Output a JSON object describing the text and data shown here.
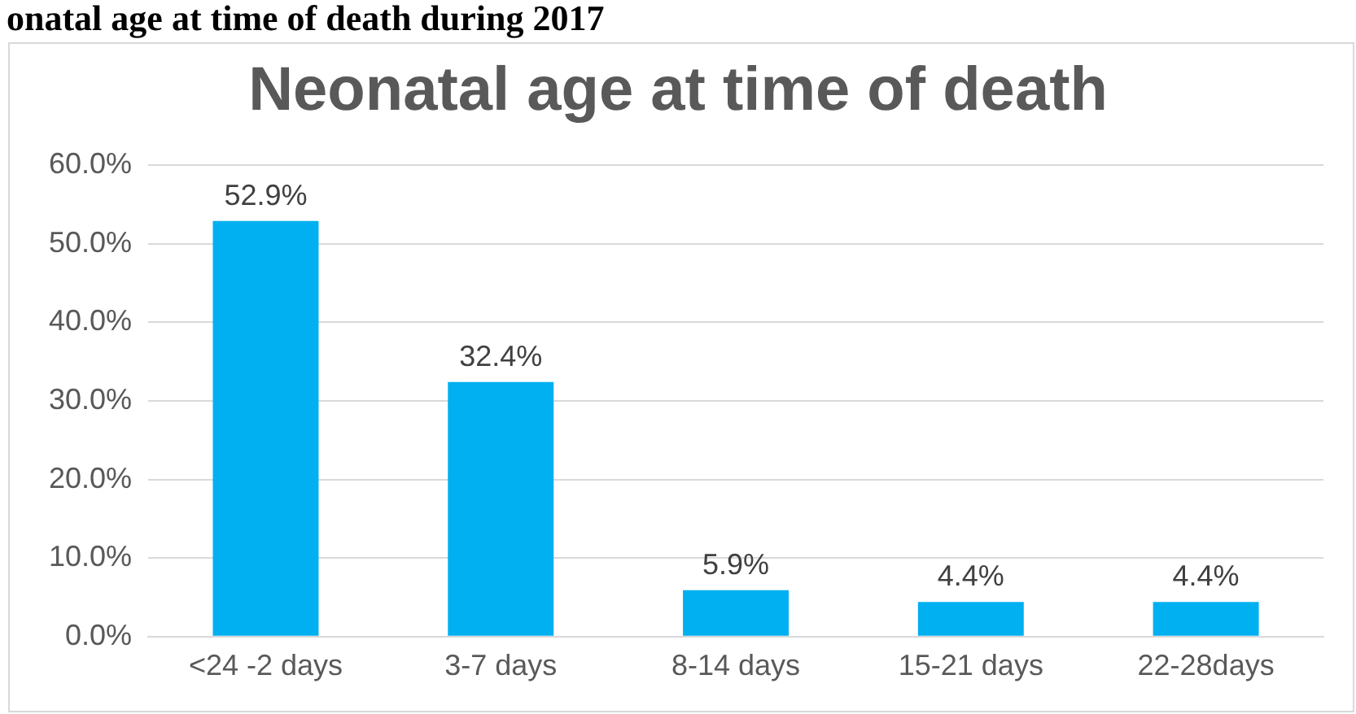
{
  "chart_data": {
    "type": "bar",
    "title": "Neonatal age at time of death",
    "annotations": [
      "onatal age at time of death during 2017"
    ],
    "categories": [
      "<24 -2 days",
      "3-7 days",
      "8-14 days",
      "15-21 days",
      "22-28days"
    ],
    "values": [
      52.9,
      32.4,
      5.9,
      4.4,
      4.4
    ],
    "value_labels": [
      "52.9%",
      "32.4%",
      "5.9%",
      "4.4%",
      "4.4%"
    ],
    "color": "#00b0f0",
    "ylim": [
      0,
      60
    ],
    "yticks": [
      {
        "value": 0,
        "label": "0.0%"
      },
      {
        "value": 10,
        "label": "10.0%"
      },
      {
        "value": 20,
        "label": "20.0%"
      },
      {
        "value": 30,
        "label": "30.0%"
      },
      {
        "value": 40,
        "label": "40.0%"
      },
      {
        "value": 50,
        "label": "50.0%"
      },
      {
        "value": 60,
        "label": "60.0%"
      }
    ],
    "grid": "y",
    "legend": false
  }
}
